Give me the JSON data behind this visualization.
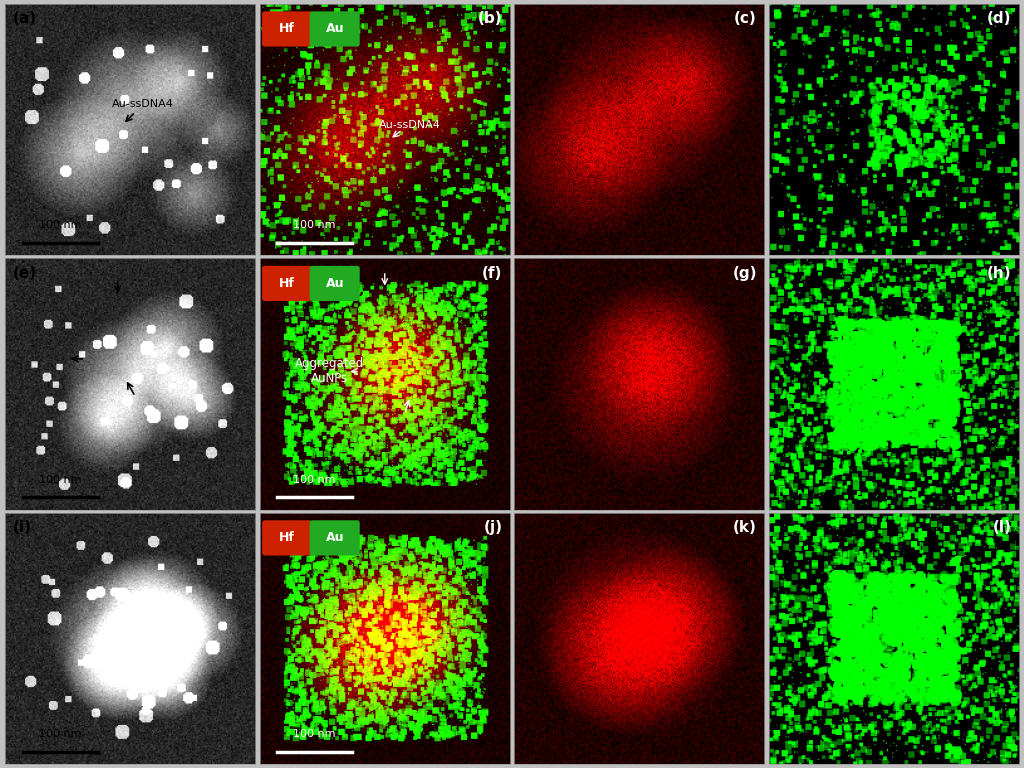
{
  "figure_bg": "#cccccc",
  "panel_bg_dark": "#000000",
  "panel_bg_gray": "#888888",
  "grid_rows": 3,
  "grid_cols": 4,
  "labels": [
    "(a)",
    "(b)",
    "(c)",
    "(d)",
    "(e)",
    "(f)",
    "(g)",
    "(h)",
    "(i)",
    "(j)",
    "(k)",
    "(l)"
  ],
  "label_color_dark": [
    "(b)",
    "(c)",
    "(d)",
    "(f)",
    "(g)",
    "(h)",
    "(j)",
    "(k)",
    "(l)"
  ],
  "label_color_light": [
    "(a)",
    "(e)",
    "(i)"
  ],
  "hf_au_panels": [
    "(b)",
    "(f)",
    "(j)"
  ],
  "annotation_b": "Au-ssDNA4",
  "annotation_f": "Aggregated\nAuNPs",
  "scalebar_text": "100 nm",
  "hf_color": "#cc2200",
  "au_color": "#22aa22",
  "white": "#ffffff",
  "light_gray": "#dddddd",
  "border_color": "#aaaaaa"
}
